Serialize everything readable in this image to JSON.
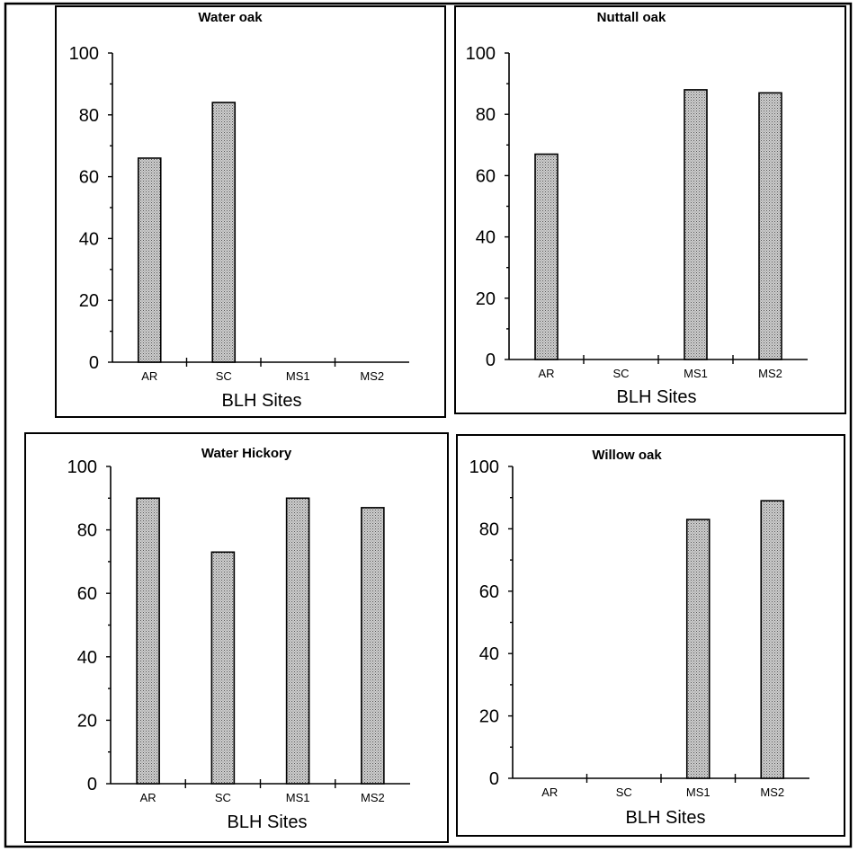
{
  "chart_data": [
    {
      "type": "bar",
      "title": "Water oak",
      "xlabel": "BLH Sites",
      "ylabel": "",
      "categories": [
        "AR",
        "SC",
        "MS1",
        "MS2"
      ],
      "values": [
        66,
        84,
        null,
        null
      ],
      "ylim": [
        0,
        100
      ],
      "yticks": [
        "0",
        "20",
        "40",
        "60",
        "80",
        "100"
      ]
    },
    {
      "type": "bar",
      "title": "Nuttall oak",
      "xlabel": "BLH Sites",
      "ylabel": "",
      "categories": [
        "AR",
        "SC",
        "MS1",
        "MS2"
      ],
      "values": [
        67,
        null,
        88,
        87
      ],
      "ylim": [
        0,
        100
      ],
      "yticks": [
        "0",
        "20",
        "40",
        "60",
        "80",
        "100"
      ]
    },
    {
      "type": "bar",
      "title": "Water Hickory",
      "xlabel": "BLH Sites",
      "ylabel": "",
      "categories": [
        "AR",
        "SC",
        "MS1",
        "MS2"
      ],
      "values": [
        90,
        73,
        90,
        87
      ],
      "ylim": [
        0,
        100
      ],
      "yticks": [
        "0",
        "20",
        "40",
        "60",
        "80",
        "100"
      ]
    },
    {
      "type": "bar",
      "title": "Willow oak",
      "xlabel": "BLH Sites",
      "ylabel": "",
      "categories": [
        "AR",
        "SC",
        "MS1",
        "MS2"
      ],
      "values": [
        null,
        null,
        83,
        89
      ],
      "ylim": [
        0,
        100
      ],
      "yticks": [
        "0",
        "20",
        "40",
        "60",
        "80",
        "100"
      ]
    }
  ]
}
